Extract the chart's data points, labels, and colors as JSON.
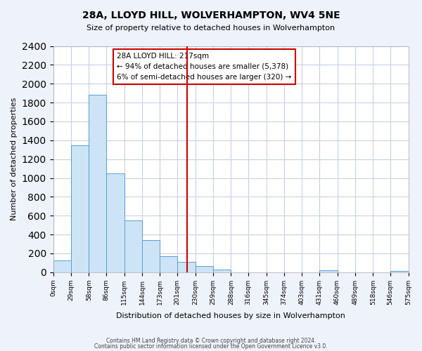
{
  "title": "28A, LLOYD HILL, WOLVERHAMPTON, WV4 5NE",
  "subtitle": "Size of property relative to detached houses in Wolverhampton",
  "xlabel": "Distribution of detached houses by size in Wolverhampton",
  "ylabel": "Number of detached properties",
  "bar_color": "#cce4f5",
  "bar_edge_color": "#5b9bd5",
  "bin_edges": [
    0,
    29,
    58,
    86,
    115,
    144,
    173,
    201,
    230,
    259,
    288,
    316,
    345,
    374,
    403,
    431,
    460,
    489,
    518,
    546,
    575
  ],
  "bar_heights": [
    125,
    1350,
    1880,
    1050,
    550,
    340,
    170,
    110,
    65,
    30,
    0,
    0,
    0,
    0,
    0,
    20,
    0,
    0,
    0,
    15
  ],
  "tick_labels": [
    "0sqm",
    "29sqm",
    "58sqm",
    "86sqm",
    "115sqm",
    "144sqm",
    "173sqm",
    "201sqm",
    "230sqm",
    "259sqm",
    "288sqm",
    "316sqm",
    "345sqm",
    "374sqm",
    "403sqm",
    "431sqm",
    "460sqm",
    "489sqm",
    "518sqm",
    "546sqm",
    "575sqm"
  ],
  "vline_x": 217,
  "vline_color": "#cc0000",
  "ylim": [
    0,
    2400
  ],
  "yticks": [
    0,
    200,
    400,
    600,
    800,
    1000,
    1200,
    1400,
    1600,
    1800,
    2000,
    2200,
    2400
  ],
  "annotation_title": "28A LLOYD HILL: 217sqm",
  "annotation_line1": "← 94% of detached houses are smaller (5,378)",
  "annotation_line2": "6% of semi-detached houses are larger (320) →",
  "footer1": "Contains HM Land Registry data © Crown copyright and database right 2024.",
  "footer2": "Contains public sector information licensed under the Open Government Licence v3.0.",
  "background_color": "#eef2fb",
  "plot_bg_color": "#ffffff",
  "grid_color": "#c8d0e0"
}
